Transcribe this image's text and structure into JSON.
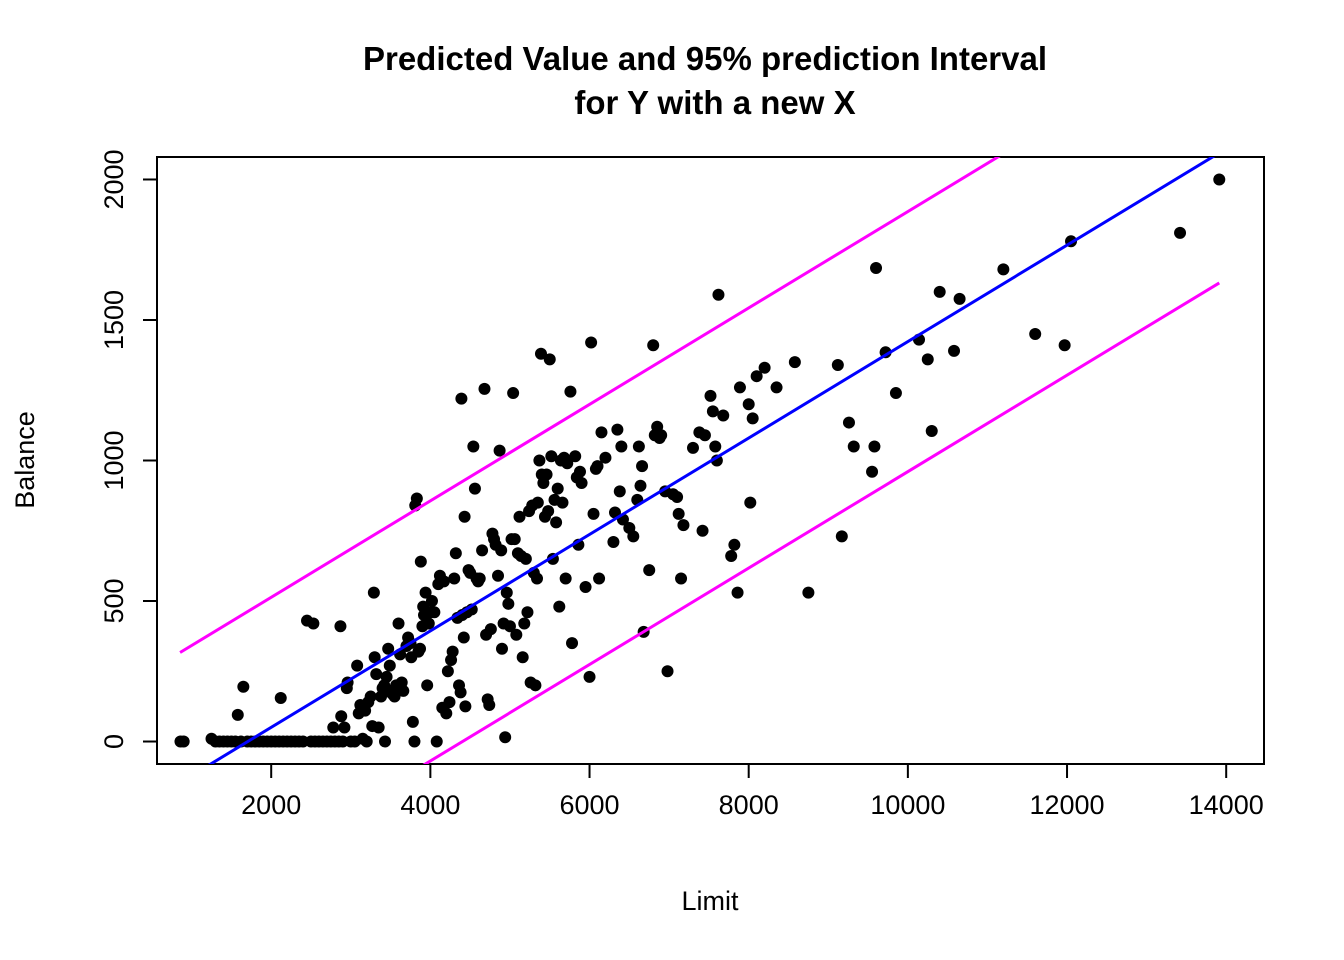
{
  "chart_data": {
    "type": "scatter",
    "title_lines": [
      "Predicted Value and 95% prediction Interval",
      "for Y with a new X"
    ],
    "xlabel": "Limit",
    "ylabel": "Balance",
    "xlim": [
      565,
      14475
    ],
    "ylim": [
      -80,
      2080
    ],
    "x_ticks": [
      2000,
      4000,
      6000,
      8000,
      10000,
      12000,
      14000
    ],
    "y_ticks": [
      0,
      500,
      1000,
      1500,
      2000
    ],
    "grid": false,
    "colors": {
      "points": "#000000",
      "fit": "#0000ff",
      "interval": "#ff00ff"
    },
    "fit_line": {
      "name": "",
      "intercept": -292.8,
      "slope": 0.1716,
      "x_range": [
        855,
        13913
      ]
    },
    "prediction_interval": {
      "upper": {
        "intercept": 170,
        "slope": 0.1716,
        "x_range": [
          855,
          13913
        ]
      },
      "lower": {
        "intercept": -755.6,
        "slope": 0.1716,
        "x_range": [
          855,
          13913
        ]
      }
    },
    "points": [
      [
        860,
        0
      ],
      [
        900,
        0
      ],
      [
        1250,
        10
      ],
      [
        1300,
        0
      ],
      [
        1350,
        0
      ],
      [
        1400,
        0
      ],
      [
        1450,
        0
      ],
      [
        1500,
        0
      ],
      [
        1550,
        0
      ],
      [
        1580,
        95
      ],
      [
        1650,
        195
      ],
      [
        1620,
        0
      ],
      [
        1700,
        0
      ],
      [
        1750,
        0
      ],
      [
        1800,
        0
      ],
      [
        1850,
        0
      ],
      [
        1900,
        0
      ],
      [
        1950,
        0
      ],
      [
        2000,
        0
      ],
      [
        2050,
        0
      ],
      [
        2100,
        0
      ],
      [
        2120,
        155
      ],
      [
        2150,
        0
      ],
      [
        2200,
        0
      ],
      [
        2250,
        0
      ],
      [
        2300,
        0
      ],
      [
        2350,
        0
      ],
      [
        2400,
        0
      ],
      [
        2450,
        430
      ],
      [
        2500,
        0
      ],
      [
        2530,
        420
      ],
      [
        2550,
        0
      ],
      [
        2600,
        0
      ],
      [
        2650,
        0
      ],
      [
        2700,
        0
      ],
      [
        2750,
        0
      ],
      [
        2780,
        50
      ],
      [
        2800,
        0
      ],
      [
        2850,
        0
      ],
      [
        2870,
        410
      ],
      [
        2880,
        90
      ],
      [
        2900,
        0
      ],
      [
        2920,
        50
      ],
      [
        2950,
        190
      ],
      [
        2960,
        210
      ],
      [
        3000,
        0
      ],
      [
        3050,
        0
      ],
      [
        3080,
        270
      ],
      [
        3100,
        100
      ],
      [
        3120,
        130
      ],
      [
        3150,
        10
      ],
      [
        3180,
        110
      ],
      [
        3200,
        0
      ],
      [
        3220,
        140
      ],
      [
        3250,
        160
      ],
      [
        3270,
        55
      ],
      [
        3290,
        530
      ],
      [
        3300,
        300
      ],
      [
        3320,
        240
      ],
      [
        3350,
        50
      ],
      [
        3380,
        160
      ],
      [
        3400,
        190
      ],
      [
        3420,
        200
      ],
      [
        3430,
        0
      ],
      [
        3450,
        230
      ],
      [
        3470,
        330
      ],
      [
        3490,
        270
      ],
      [
        3500,
        180
      ],
      [
        3520,
        170
      ],
      [
        3550,
        160
      ],
      [
        3570,
        200
      ],
      [
        3600,
        420
      ],
      [
        3620,
        310
      ],
      [
        3640,
        210
      ],
      [
        3660,
        180
      ],
      [
        3700,
        340
      ],
      [
        3720,
        370
      ],
      [
        3750,
        350
      ],
      [
        3760,
        300
      ],
      [
        3780,
        70
      ],
      [
        3800,
        0
      ],
      [
        3810,
        840
      ],
      [
        3830,
        865
      ],
      [
        3850,
        320
      ],
      [
        3870,
        330
      ],
      [
        3880,
        640
      ],
      [
        3900,
        410
      ],
      [
        3910,
        480
      ],
      [
        3920,
        450
      ],
      [
        3940,
        530
      ],
      [
        3960,
        200
      ],
      [
        3980,
        420
      ],
      [
        4000,
        460
      ],
      [
        4020,
        500
      ],
      [
        4050,
        460
      ],
      [
        4080,
        0
      ],
      [
        4100,
        560
      ],
      [
        4120,
        590
      ],
      [
        4150,
        120
      ],
      [
        4170,
        570
      ],
      [
        4200,
        100
      ],
      [
        4220,
        250
      ],
      [
        4240,
        140
      ],
      [
        4260,
        290
      ],
      [
        4280,
        320
      ],
      [
        4300,
        580
      ],
      [
        4320,
        670
      ],
      [
        4340,
        440
      ],
      [
        4360,
        200
      ],
      [
        4380,
        175
      ],
      [
        4390,
        1220
      ],
      [
        4400,
        450
      ],
      [
        4420,
        370
      ],
      [
        4430,
        800
      ],
      [
        4440,
        125
      ],
      [
        4460,
        460
      ],
      [
        4480,
        610
      ],
      [
        4500,
        600
      ],
      [
        4520,
        470
      ],
      [
        4540,
        1050
      ],
      [
        4560,
        900
      ],
      [
        4580,
        580
      ],
      [
        4600,
        570
      ],
      [
        4620,
        580
      ],
      [
        4650,
        680
      ],
      [
        4680,
        1255
      ],
      [
        4700,
        380
      ],
      [
        4720,
        150
      ],
      [
        4740,
        130
      ],
      [
        4760,
        400
      ],
      [
        4780,
        740
      ],
      [
        4800,
        720
      ],
      [
        4820,
        700
      ],
      [
        4850,
        590
      ],
      [
        4870,
        1035
      ],
      [
        4890,
        680
      ],
      [
        4900,
        330
      ],
      [
        4920,
        420
      ],
      [
        4940,
        15
      ],
      [
        4960,
        530
      ],
      [
        4980,
        490
      ],
      [
        5000,
        410
      ],
      [
        5020,
        720
      ],
      [
        5040,
        1240
      ],
      [
        5060,
        720
      ],
      [
        5080,
        380
      ],
      [
        5100,
        670
      ],
      [
        5120,
        800
      ],
      [
        5140,
        660
      ],
      [
        5160,
        300
      ],
      [
        5180,
        420
      ],
      [
        5200,
        650
      ],
      [
        5220,
        460
      ],
      [
        5240,
        820
      ],
      [
        5260,
        210
      ],
      [
        5280,
        840
      ],
      [
        5300,
        600
      ],
      [
        5320,
        200
      ],
      [
        5340,
        580
      ],
      [
        5350,
        850
      ],
      [
        5370,
        1000
      ],
      [
        5390,
        1380
      ],
      [
        5400,
        950
      ],
      [
        5420,
        920
      ],
      [
        5440,
        800
      ],
      [
        5460,
        950
      ],
      [
        5480,
        820
      ],
      [
        5500,
        1360
      ],
      [
        5520,
        1015
      ],
      [
        5540,
        650
      ],
      [
        5560,
        860
      ],
      [
        5580,
        780
      ],
      [
        5600,
        900
      ],
      [
        5620,
        480
      ],
      [
        5640,
        1000
      ],
      [
        5660,
        850
      ],
      [
        5680,
        1010
      ],
      [
        5700,
        580
      ],
      [
        5720,
        990
      ],
      [
        5760,
        1245
      ],
      [
        5780,
        350
      ],
      [
        5820,
        1015
      ],
      [
        5840,
        940
      ],
      [
        5860,
        700
      ],
      [
        5880,
        960
      ],
      [
        5900,
        920
      ],
      [
        5950,
        550
      ],
      [
        6000,
        230
      ],
      [
        6020,
        1420
      ],
      [
        6050,
        810
      ],
      [
        6080,
        970
      ],
      [
        6100,
        980
      ],
      [
        6120,
        580
      ],
      [
        6150,
        1100
      ],
      [
        6200,
        1010
      ],
      [
        6300,
        710
      ],
      [
        6320,
        815
      ],
      [
        6350,
        1110
      ],
      [
        6380,
        890
      ],
      [
        6400,
        1050
      ],
      [
        6420,
        790
      ],
      [
        6500,
        760
      ],
      [
        6550,
        730
      ],
      [
        6600,
        860
      ],
      [
        6620,
        1050
      ],
      [
        6640,
        910
      ],
      [
        6660,
        980
      ],
      [
        6680,
        390
      ],
      [
        6750,
        610
      ],
      [
        6800,
        1410
      ],
      [
        6820,
        1090
      ],
      [
        6850,
        1120
      ],
      [
        6880,
        1080
      ],
      [
        6900,
        1090
      ],
      [
        6950,
        890
      ],
      [
        6980,
        250
      ],
      [
        7050,
        880
      ],
      [
        7100,
        870
      ],
      [
        7120,
        810
      ],
      [
        7150,
        580
      ],
      [
        7180,
        770
      ],
      [
        7300,
        1045
      ],
      [
        7380,
        1100
      ],
      [
        7420,
        750
      ],
      [
        7450,
        1090
      ],
      [
        7520,
        1230
      ],
      [
        7550,
        1175
      ],
      [
        7580,
        1050
      ],
      [
        7600,
        1000
      ],
      [
        7620,
        1590
      ],
      [
        7680,
        1160
      ],
      [
        7780,
        660
      ],
      [
        7820,
        700
      ],
      [
        7860,
        530
      ],
      [
        7890,
        1260
      ],
      [
        8000,
        1200
      ],
      [
        8020,
        850
      ],
      [
        8050,
        1150
      ],
      [
        8100,
        1300
      ],
      [
        8200,
        1330
      ],
      [
        8350,
        1260
      ],
      [
        8580,
        1350
      ],
      [
        8750,
        530
      ],
      [
        9120,
        1340
      ],
      [
        9170,
        730
      ],
      [
        9260,
        1135
      ],
      [
        9320,
        1050
      ],
      [
        9550,
        960
      ],
      [
        9580,
        1050
      ],
      [
        9600,
        1685
      ],
      [
        9720,
        1385
      ],
      [
        9850,
        1240
      ],
      [
        10140,
        1430
      ],
      [
        10250,
        1360
      ],
      [
        10300,
        1105
      ],
      [
        10400,
        1600
      ],
      [
        10580,
        1390
      ],
      [
        10650,
        1575
      ],
      [
        11200,
        1680
      ],
      [
        11600,
        1450
      ],
      [
        11970,
        1410
      ],
      [
        12050,
        1780
      ],
      [
        13420,
        1810
      ],
      [
        13913,
        2000
      ]
    ]
  }
}
